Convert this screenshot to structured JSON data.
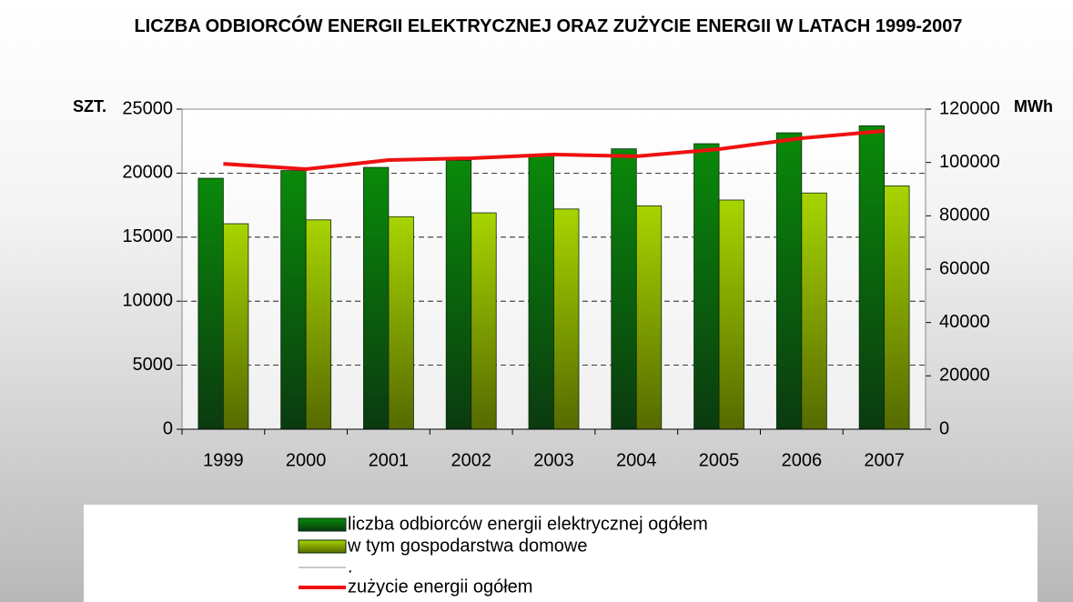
{
  "chart_data": {
    "type": "bar",
    "title": "LICZBA ODBIORCÓW ENERGII ELEKTRYCZNEJ ORAZ ZUŻYCIE ENERGII W LATACH 1999-2007",
    "ylabel": "SZT.",
    "y2label": "MWh",
    "categories": [
      "1999",
      "2000",
      "2001",
      "2002",
      "2003",
      "2004",
      "2005",
      "2006",
      "2007"
    ],
    "series": [
      {
        "name": "liczba odbiorców energii elektrycznej ogółem",
        "type": "bar",
        "color": "#0a7a0a",
        "values": [
          19600,
          20200,
          20450,
          21000,
          21400,
          21900,
          22300,
          23150,
          23700
        ]
      },
      {
        "name": "w tym gospodarstwa domowe",
        "type": "bar",
        "color": "#99cc00",
        "values": [
          16050,
          16350,
          16600,
          16900,
          17200,
          17450,
          17900,
          18450,
          19000
        ]
      },
      {
        "name": ".",
        "type": "line",
        "color": "#c8c8c8",
        "axis": "y2",
        "values": [
          null,
          null,
          null,
          null,
          null,
          null,
          null,
          null,
          null
        ]
      },
      {
        "name": "zużycie energii ogółem",
        "type": "line",
        "color": "#ee1111",
        "axis": "y2",
        "values": [
          99500,
          97500,
          100900,
          101600,
          103000,
          102300,
          105000,
          109100,
          111800
        ]
      }
    ],
    "ylim": [
      0,
      25000
    ],
    "yticks": [
      0,
      5000,
      10000,
      15000,
      20000,
      25000
    ],
    "y2lim": [
      0,
      120000
    ],
    "y2ticks": [
      0,
      20000,
      40000,
      60000,
      80000,
      100000,
      120000
    ],
    "grid": true,
    "legend": "bottom"
  }
}
